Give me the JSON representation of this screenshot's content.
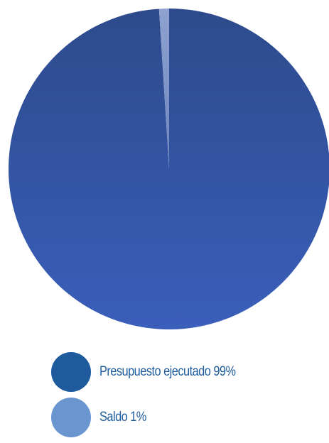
{
  "chart_data": {
    "type": "pie",
    "title": "",
    "legend_position": "bottom",
    "slices": [
      {
        "label": "Presupuesto ejecutado 99%",
        "value": 99,
        "color": "#3456b0",
        "legend_color": "#1f5a9c"
      },
      {
        "label": "Saldo 1%",
        "value": 1,
        "color": "#7e93c4",
        "legend_color": "#6a95cf"
      }
    ]
  },
  "legend": {
    "items": [
      {
        "label": "Presupuesto ejecutado 99%",
        "color": "#1f5a9c"
      },
      {
        "label": "Saldo 1%",
        "color": "#6a95cf"
      }
    ]
  }
}
